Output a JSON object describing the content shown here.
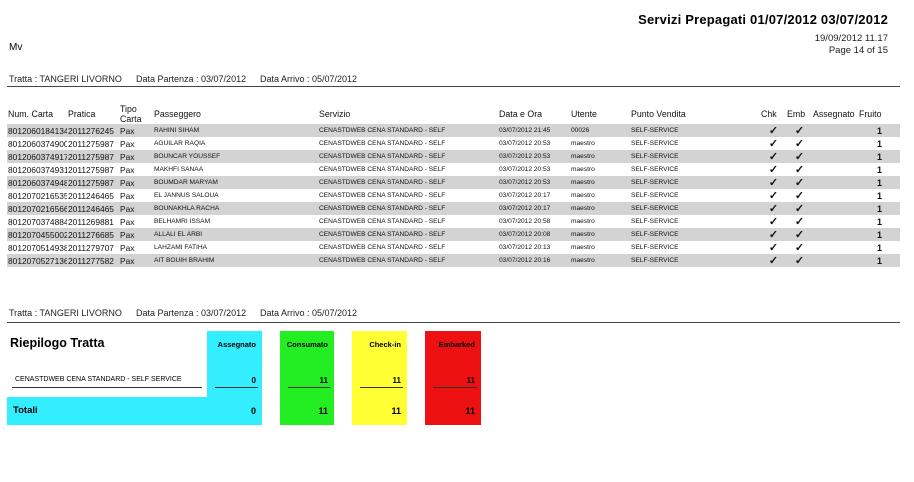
{
  "header": {
    "title": "Servizi Prepagati  01/07/2012  03/07/2012",
    "printed_at": "19/09/2012 11.17",
    "page": "Page 14 of 15",
    "mv": "Mv"
  },
  "route_top": {
    "tratta": "Tratta : TANGERI LIVORNO",
    "partenza": "Data Partenza : 03/07/2012",
    "arrivo": "Data Arrivo : 05/07/2012"
  },
  "columns": [
    "Num. Carta",
    "Pratica",
    "Tipo Carta",
    "Passeggero",
    "Servizio",
    "Data e Ora",
    "Utente",
    "Punto Vendita",
    "Chk",
    "Emb",
    "Assegnato",
    "Fruito"
  ],
  "rows": [
    {
      "carta": "8012060184134",
      "pratica": "2011276245",
      "tipo": "Pax",
      "passeggero": "RAHINI SIHAM",
      "servizio": "CENASTDWEB CENA STANDARD - SELF",
      "data": "03/07/2012 21:45",
      "utente": "00026",
      "punto": "SELF-SERVICE",
      "chk": "✓",
      "emb": "✓",
      "assegnato": "",
      "fruito": "1"
    },
    {
      "carta": "8012060374900",
      "pratica": "2011275987",
      "tipo": "Pax",
      "passeggero": "AGUILAR RAQIA",
      "servizio": "CENASTDWEB CENA STANDARD - SELF",
      "data": "03/07/2012 20:53",
      "utente": "maestro",
      "punto": "SELF-SERVICE",
      "chk": "✓",
      "emb": "✓",
      "assegnato": "",
      "fruito": "1"
    },
    {
      "carta": "8012060374917",
      "pratica": "2011275987",
      "tipo": "Pax",
      "passeggero": "BOUNCAR YOUSSEF",
      "servizio": "CENASTDWEB CENA STANDARD - SELF",
      "data": "03/07/2012 20:53",
      "utente": "maestro",
      "punto": "SELF-SERVICE",
      "chk": "✓",
      "emb": "✓",
      "assegnato": "",
      "fruito": "1"
    },
    {
      "carta": "8012060374931",
      "pratica": "2011275987",
      "tipo": "Pax",
      "passeggero": "MAKHFI SANAA",
      "servizio": "CENASTDWEB CENA STANDARD - SELF",
      "data": "03/07/2012 20:53",
      "utente": "maestro",
      "punto": "SELF-SERVICE",
      "chk": "✓",
      "emb": "✓",
      "assegnato": "",
      "fruito": "1"
    },
    {
      "carta": "8012060374948",
      "pratica": "2011275987",
      "tipo": "Pax",
      "passeggero": "BOUMDAR MARYAM",
      "servizio": "CENASTDWEB CENA STANDARD - SELF",
      "data": "03/07/2012 20:53",
      "utente": "maestro",
      "punto": "SELF-SERVICE",
      "chk": "✓",
      "emb": "✓",
      "assegnato": "",
      "fruito": "1"
    },
    {
      "carta": "8012070216535",
      "pratica": "2011246465",
      "tipo": "Pax",
      "passeggero": "EL JANNUS SALOUA",
      "servizio": "CENASTDWEB CENA STANDARD - SELF",
      "data": "03/07/2012 20:17",
      "utente": "maestro",
      "punto": "SELF-SERVICE",
      "chk": "✓",
      "emb": "✓",
      "assegnato": "",
      "fruito": "1"
    },
    {
      "carta": "8012070216566",
      "pratica": "2011246465",
      "tipo": "Pax",
      "passeggero": "BOUNAKHLA RACHA",
      "servizio": "CENASTDWEB CENA STANDARD - SELF",
      "data": "03/07/2012 20:17",
      "utente": "maestro",
      "punto": "SELF-SERVICE",
      "chk": "✓",
      "emb": "✓",
      "assegnato": "",
      "fruito": "1"
    },
    {
      "carta": "8012070374884",
      "pratica": "2011269881",
      "tipo": "Pax",
      "passeggero": "BELHAMRI ISSAM",
      "servizio": "CENASTDWEB CENA STANDARD - SELF",
      "data": "03/07/2012 20:58",
      "utente": "maestro",
      "punto": "SELF-SERVICE",
      "chk": "✓",
      "emb": "✓",
      "assegnato": "",
      "fruito": "1"
    },
    {
      "carta": "8012070455002",
      "pratica": "2011276685",
      "tipo": "Pax",
      "passeggero": "ALLALI EL ARBI",
      "servizio": "CENASTDWEB CENA STANDARD - SELF",
      "data": "03/07/2012 20:08",
      "utente": "maestro",
      "punto": "SELF-SERVICE",
      "chk": "✓",
      "emb": "✓",
      "assegnato": "",
      "fruito": "1"
    },
    {
      "carta": "8012070514938",
      "pratica": "2011279707",
      "tipo": "Pax",
      "passeggero": "LAHZAMI FATIHA",
      "servizio": "CENASTDWEB CENA STANDARD - SELF",
      "data": "03/07/2012 20:13",
      "utente": "maestro",
      "punto": "SELF-SERVICE",
      "chk": "✓",
      "emb": "✓",
      "assegnato": "",
      "fruito": "1"
    },
    {
      "carta": "8012070527136",
      "pratica": "2011277582",
      "tipo": "Pax",
      "passeggero": "AIT BOUIH BRAHIM",
      "servizio": "CENASTDWEB CENA STANDARD - SELF",
      "data": "03/07/2012 20:16",
      "utente": "maestro",
      "punto": "SELF-SERVICE",
      "chk": "✓",
      "emb": "✓",
      "assegnato": "",
      "fruito": "1"
    }
  ],
  "route_bottom": {
    "tratta": "Tratta : TANGERI LIVORNO",
    "partenza": "Data Partenza : 03/07/2012",
    "arrivo": "Data Arrivo : 05/07/2012"
  },
  "riepilogo": {
    "title": "Riepilogo Tratta",
    "service": "CENASTDWEB CENA STANDARD - SELF SERVICE",
    "totali_label": "Totali",
    "boxes": [
      {
        "label": "Assegnato",
        "value": "0",
        "total": "0",
        "color": "#33eeff"
      },
      {
        "label": "Consumato",
        "value": "11",
        "total": "11",
        "color": "#22ee22"
      },
      {
        "label": "Check-in",
        "value": "11",
        "total": "11",
        "color": "#ffff33"
      },
      {
        "label": "Embarked",
        "value": "11",
        "total": "11",
        "color": "#ee1111"
      }
    ]
  }
}
